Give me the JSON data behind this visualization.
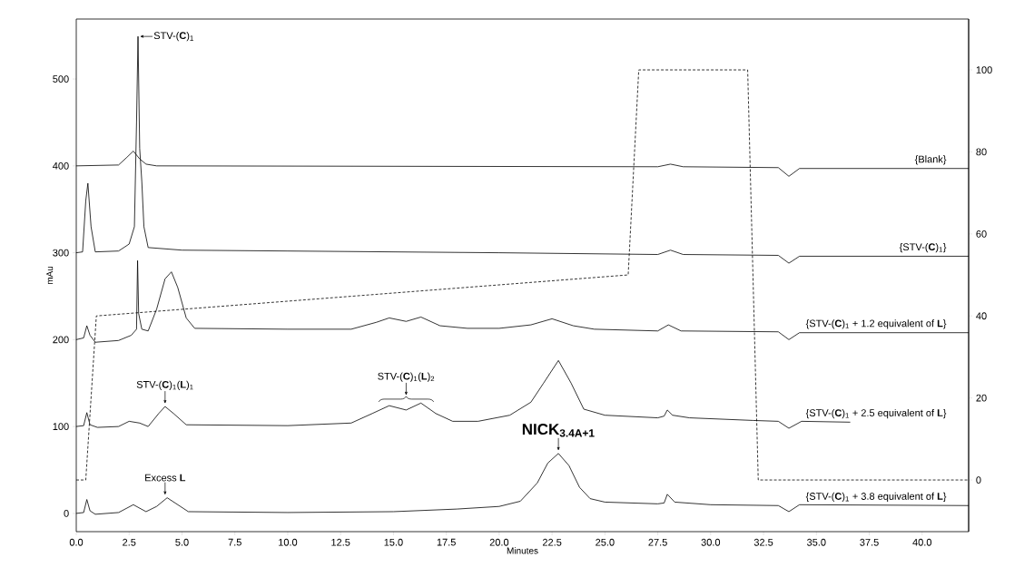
{
  "chart_data": {
    "type": "line",
    "xlabel": "Minutes",
    "ylabel": "mAu",
    "xlim": [
      0,
      42.2
    ],
    "ylim": [
      -21,
      569
    ],
    "y2lim": [
      -12.6,
      112.4
    ],
    "xticks": [
      {
        "value": 0,
        "label": "0.0"
      },
      {
        "value": 2.5,
        "label": "2.5"
      },
      {
        "value": 5,
        "label": "5.0"
      },
      {
        "value": 7.5,
        "label": "7.5"
      },
      {
        "value": 10,
        "label": "10.0"
      },
      {
        "value": 12.5,
        "label": "12.5"
      },
      {
        "value": 15,
        "label": "15.0"
      },
      {
        "value": 17.5,
        "label": "17.5"
      },
      {
        "value": 20,
        "label": "20.0"
      },
      {
        "value": 22.5,
        "label": "22.5"
      },
      {
        "value": 25,
        "label": "25.0"
      },
      {
        "value": 27.5,
        "label": "27.5"
      },
      {
        "value": 30,
        "label": "30.0"
      },
      {
        "value": 32.5,
        "label": "32.5"
      },
      {
        "value": 35,
        "label": "35.0"
      },
      {
        "value": 37.5,
        "label": "37.5"
      },
      {
        "value": 40,
        "label": "40.0"
      }
    ],
    "yticks": [
      0,
      100,
      200,
      300,
      400,
      500
    ],
    "y2ticks": [
      0,
      20,
      40,
      60,
      80,
      100
    ],
    "series": [
      {
        "name": "{Blank}",
        "color": "#000000",
        "line_style": "solid",
        "x": [
          0,
          2.0,
          2.4,
          2.7,
          3.0,
          3.3,
          3.8,
          27.5,
          28.1,
          28.7,
          33.2,
          33.7,
          34.2,
          42.2
        ],
        "values": [
          400,
          401,
          410,
          417,
          408,
          402,
          400,
          399,
          402,
          399,
          398,
          388,
          397,
          397
        ]
      },
      {
        "name": "{STV-(**C**)$_{1}$}",
        "color": "#000000",
        "line_style": "solid",
        "x": [
          0,
          0.3,
          0.45,
          0.55,
          0.7,
          0.9,
          2.0,
          2.5,
          2.75,
          2.85,
          2.92,
          3.0,
          3.1,
          3.2,
          3.4,
          5,
          10,
          20,
          27.5,
          28.1,
          28.7,
          33.2,
          33.7,
          34.2,
          42.2
        ],
        "values": [
          300,
          301,
          360,
          380,
          330,
          301,
          302,
          310,
          330,
          450,
          549,
          420,
          382,
          330,
          306,
          303,
          302,
          300,
          298,
          303,
          298,
          297,
          288,
          296,
          296
        ]
      },
      {
        "name": "{STV-(**C**)$_{1}$ + 1.2 equivalent of **L**}",
        "color": "#000000",
        "line_style": "solid",
        "x": [
          0,
          0.35,
          0.5,
          0.65,
          0.9,
          2.0,
          2.6,
          2.85,
          2.9,
          2.95,
          3.1,
          3.4,
          3.8,
          4.2,
          4.5,
          4.8,
          5.2,
          5.6,
          10,
          13,
          14.2,
          14.8,
          15.6,
          16.3,
          17.2,
          18.5,
          20,
          21.5,
          22.5,
          23.5,
          24.5,
          27.5,
          28.0,
          28.6,
          33.2,
          33.7,
          34.2,
          42.2
        ],
        "values": [
          200,
          202,
          216,
          205,
          197,
          199,
          205,
          212,
          291,
          230,
          212,
          210,
          235,
          270,
          278,
          260,
          225,
          213,
          212,
          212,
          220,
          225,
          221,
          226,
          216,
          213,
          213,
          217,
          224,
          216,
          212,
          210,
          217,
          210,
          209,
          200,
          208,
          208
        ]
      },
      {
        "name": "{STV-(**C**)$_{1}$ + 2.5 equivalent of **L**}",
        "color": "#000000",
        "line_style": "solid",
        "x": [
          0,
          0.35,
          0.5,
          0.65,
          1,
          2.0,
          2.5,
          3.0,
          3.4,
          3.9,
          4.2,
          4.6,
          5.2,
          10,
          13,
          14,
          14.8,
          15.6,
          16.3,
          17.0,
          17.8,
          19,
          20.5,
          21.5,
          22.1,
          22.8,
          23.4,
          24.0,
          25,
          27.5,
          27.8,
          27.95,
          28.2,
          29,
          32,
          33.2,
          33.7,
          34.3,
          36.6
        ],
        "values": [
          100,
          101,
          116,
          102,
          99,
          100,
          106,
          104,
          100,
          115,
          123,
          115,
          102,
          101,
          104,
          115,
          124,
          119,
          127,
          115,
          106,
          106,
          113,
          128,
          150,
          176,
          150,
          120,
          113,
          110,
          112,
          119,
          113,
          110,
          107,
          106,
          98,
          106,
          105
        ]
      },
      {
        "name": "{STV-(**C**)$_{1}$ + 3.8 equivalent of **L**}",
        "color": "#000000",
        "line_style": "solid",
        "x": [
          0,
          0.35,
          0.5,
          0.65,
          0.9,
          2.0,
          2.7,
          3.3,
          3.8,
          4.3,
          4.8,
          5.3,
          10,
          15,
          18,
          20,
          21,
          21.8,
          22.3,
          22.8,
          23.3,
          23.8,
          24.3,
          25,
          27.5,
          27.8,
          27.95,
          28.3,
          30,
          33.2,
          33.7,
          34.2,
          42.2
        ],
        "values": [
          0,
          1,
          16,
          3,
          -1,
          1,
          10,
          2,
          8,
          18,
          10,
          2,
          1,
          2,
          5,
          8,
          14,
          35,
          58,
          69,
          55,
          30,
          17,
          13,
          11,
          12,
          22,
          13,
          10,
          9,
          2,
          10,
          9
        ]
      },
      {
        "axis": "y2",
        "color": "#000000",
        "line_style": "dashed",
        "x": [
          0,
          0.45,
          0.95,
          26.1,
          26.6,
          31.75,
          32.25,
          42.2
        ],
        "values": [
          0,
          0,
          40,
          50,
          100,
          100,
          0,
          0
        ]
      }
    ],
    "annotations": [
      {
        "text": "STV-(**C**)$_{1}$",
        "x": 2.92,
        "y": 549
      },
      {
        "text": "STV-(**C**)$_{1}$(**L**)$_{1}$",
        "x": 4.2,
        "y": 123
      },
      {
        "text": "STV-(**C**)$_{1}$(**L**)$_{2}$",
        "x": 15.6,
        "y": 119
      },
      {
        "text": "Excess **L**",
        "x": 4.2,
        "y": 18
      },
      {
        "text": "**NICK**$_{3.4A+1}$",
        "x": 22.8,
        "y": 69
      }
    ]
  }
}
